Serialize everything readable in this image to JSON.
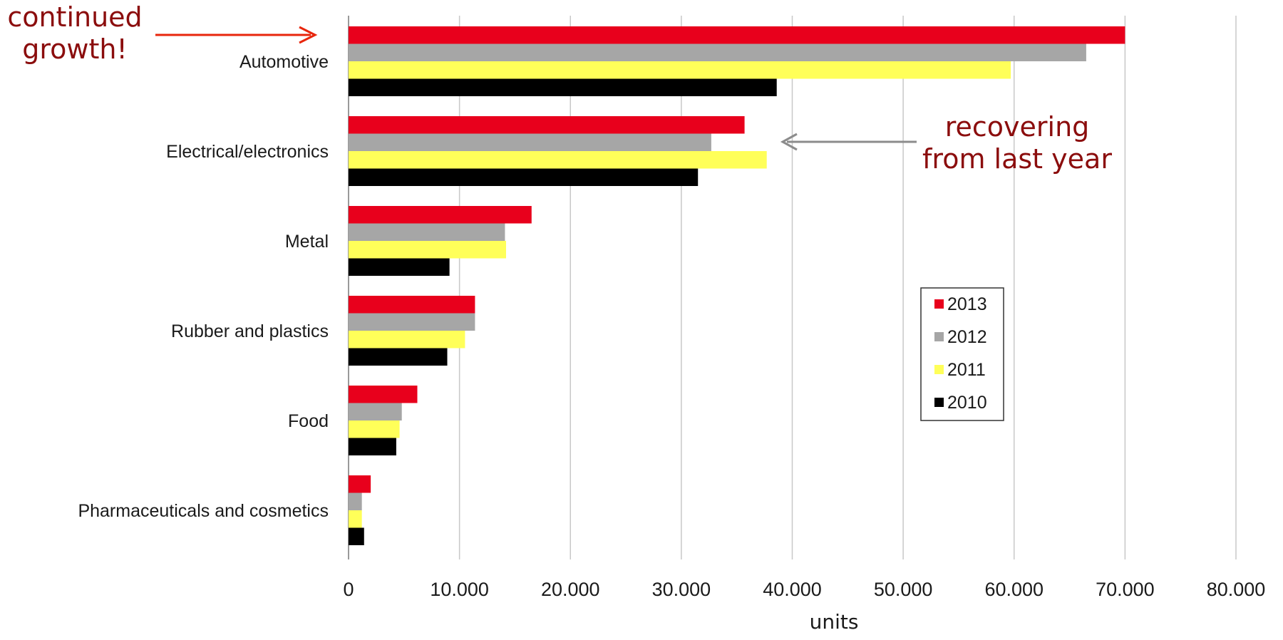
{
  "chart_data": {
    "type": "bar",
    "orientation": "horizontal",
    "categories": [
      "Automotive",
      "Electrical/electronics",
      "Metal",
      "Rubber and plastics",
      "Food",
      "Pharmaceuticals and cosmetics"
    ],
    "series": [
      {
        "name": "2013",
        "color": "#e8001c",
        "values": [
          70000,
          35700,
          16500,
          11400,
          6200,
          2000
        ]
      },
      {
        "name": "2012",
        "color": "#a6a6a6",
        "values": [
          66500,
          32700,
          14100,
          11400,
          4800,
          1200
        ]
      },
      {
        "name": "2011",
        "color": "#ffff59",
        "values": [
          59700,
          37700,
          14200,
          10500,
          4600,
          1200
        ]
      },
      {
        "name": "2010",
        "color": "#000000",
        "values": [
          38600,
          31500,
          9100,
          8900,
          4300,
          1400
        ]
      }
    ],
    "xlim": [
      0,
      80000
    ],
    "xticks": [
      0,
      10000,
      20000,
      30000,
      40000,
      50000,
      60000,
      70000,
      80000
    ],
    "xtick_labels": [
      "0",
      "10.000",
      "20.000",
      "30.000",
      "40.000",
      "50.000",
      "60.000",
      "70.000",
      "80.000"
    ],
    "xlabel": "units",
    "grid": "vertical",
    "legend_position": "right",
    "annotations": [
      {
        "id": "growth",
        "text_lines": [
          "continued",
          "growth!"
        ],
        "arrow_color": "#e8260c",
        "points_to": "Automotive 2013"
      },
      {
        "id": "recovering",
        "text_lines": [
          "recovering",
          "from last year"
        ],
        "arrow_color": "#8c8c8c",
        "points_to": "Electrical/electronics"
      }
    ]
  }
}
